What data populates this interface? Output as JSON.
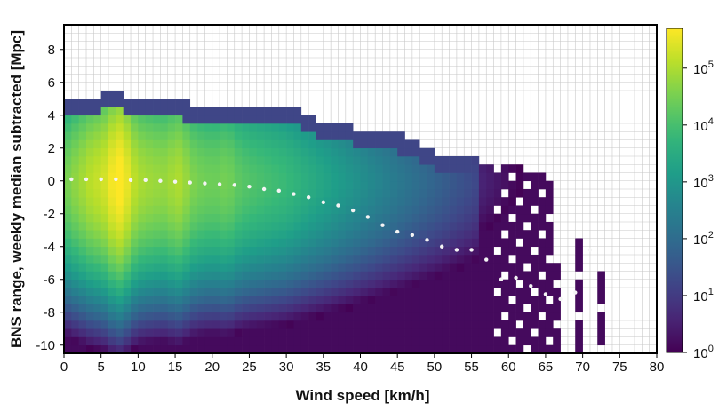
{
  "chart_data": {
    "type": "heatmap",
    "title": "",
    "xlabel": "Wind speed [km/h]",
    "ylabel": "BNS range, weekly median subtracted [Mpc]",
    "xlim": [
      0,
      80
    ],
    "ylim": [
      -10.5,
      9.5
    ],
    "x_ticks": [
      "0",
      "5",
      "10",
      "15",
      "20",
      "25",
      "30",
      "35",
      "40",
      "45",
      "50",
      "55",
      "60",
      "65",
      "70",
      "75",
      "80"
    ],
    "y_ticks": [
      "-10",
      "-8",
      "-6",
      "-4",
      "-2",
      "0",
      "2",
      "4",
      "6",
      "8"
    ],
    "bin_width_x": 1,
    "bin_height_y": 0.5,
    "grid": true,
    "colormap": "viridis",
    "colorbar": {
      "scale": "log",
      "range": [
        1,
        500000
      ],
      "tick_base": "10",
      "tick_exponents": [
        "0",
        "1",
        "2",
        "3",
        "4",
        "5"
      ]
    },
    "upper_edge": {
      "x": [
        0,
        2,
        4,
        6,
        8,
        10,
        12,
        14,
        16,
        18,
        20,
        22,
        24,
        26,
        28,
        30,
        32,
        34,
        36,
        38,
        40,
        42,
        44,
        46,
        48,
        50,
        52,
        54,
        56,
        58,
        60,
        62,
        64,
        66
      ],
      "y_max": [
        5.0,
        4.5,
        4.8,
        5.5,
        5.0,
        4.9,
        4.9,
        4.8,
        4.6,
        4.4,
        4.3,
        4.5,
        4.5,
        4.4,
        4.5,
        4.5,
        4.0,
        3.5,
        3.4,
        3.3,
        2.8,
        3.0,
        2.7,
        2.5,
        2.1,
        1.6,
        1.1,
        1.3,
        1.0,
        0.6,
        1.0,
        0.5,
        0.4,
        0.3
      ]
    },
    "series": [
      {
        "type": "scatter",
        "marker": "white-dot",
        "x": [
          1,
          3,
          5,
          7,
          9,
          11,
          13,
          15,
          17,
          19,
          21,
          23,
          25,
          27,
          29,
          31,
          33,
          35,
          37,
          39,
          41,
          43,
          45,
          47,
          49,
          51,
          53,
          55,
          57,
          59,
          61,
          63,
          65,
          67,
          69,
          71
        ],
        "y": [
          0.1,
          0.1,
          0.1,
          0.1,
          0.05,
          0.05,
          0.0,
          -0.05,
          -0.1,
          -0.15,
          -0.2,
          -0.25,
          -0.35,
          -0.5,
          -0.6,
          -0.8,
          -1.0,
          -1.3,
          -1.5,
          -1.8,
          -2.2,
          -2.7,
          -3.1,
          -3.3,
          -3.6,
          -4.0,
          -4.2,
          -4.2,
          -4.8,
          -6.0,
          -5.9,
          -6.4,
          -6.9,
          -7.2,
          -6.8,
          -4.2
        ]
      }
    ]
  }
}
